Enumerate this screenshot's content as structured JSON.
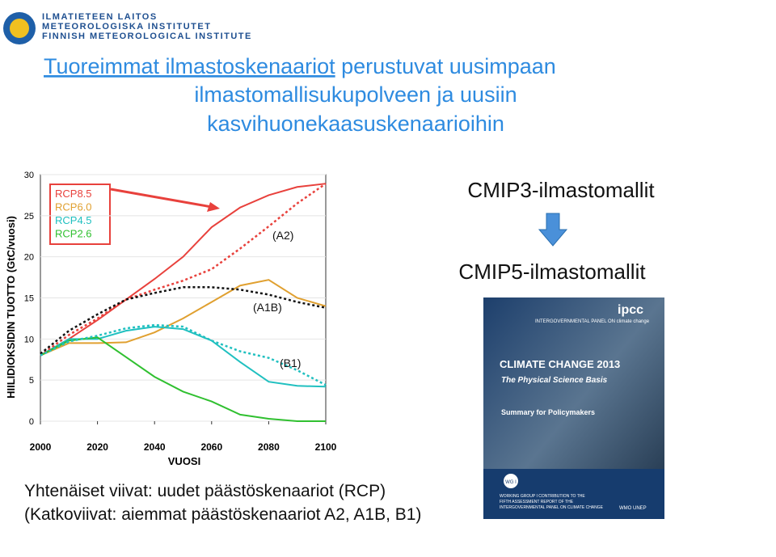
{
  "logo": {
    "lines": [
      "ILMATIETEEN LAITOS",
      "METEOROLOGISKA INSTITUTET",
      "FINNISH METEOROLOGICAL INSTITUTE"
    ]
  },
  "title": {
    "link": "Tuoreimmat ilmastoskenaariot",
    "lines": [
      " perustuvat uusimpaan",
      "ilmastomallisukupolveen ja uusiin",
      "kasvihuonekaasuskenaarioihin"
    ]
  },
  "cmip3": "CMIP3-ilmastomallit",
  "cmip5": "CMIP5-ilmastomallit",
  "cover": {
    "org": "ipcc",
    "panel": "INTERGOVERNMENTAL PANEL ON climate change",
    "title": "CLIMATE CHANGE 2013",
    "subtitle": "The Physical Science Basis",
    "summary": "Summary for Policymakers",
    "wg": "WG I",
    "contribution": [
      "WORKING GROUP I CONTRIBUTION TO THE",
      "FIFTH ASSESSMENT REPORT OF THE",
      "INTERGOVERNMENTAL PANEL ON CLIMATE CHANGE"
    ],
    "logos": "WMO  UNEP"
  },
  "footer": [
    "Yhtenäiset viivat: uudet päästöskenaariot (RCP)",
    "(Katkoviivat: aiemmat päästöskenaariot  A2, A1B, B1)"
  ],
  "chart_data": {
    "type": "line",
    "xlabel": "VUOSI",
    "ylabel": "HIILIDIOKSIDIN TUOTTO (GtC/vuosi)",
    "x": [
      2000,
      2010,
      2020,
      2030,
      2040,
      2050,
      2060,
      2070,
      2080,
      2090,
      2100
    ],
    "xlim": [
      2000,
      2100
    ],
    "xticks": [
      2000,
      2020,
      2040,
      2060,
      2080,
      2100
    ],
    "ylim": [
      0,
      30
    ],
    "yticks": [
      0,
      5,
      10,
      15,
      20,
      25,
      30
    ],
    "grid": true,
    "series": [
      {
        "name": "RCP8.5",
        "color": "#e8413c",
        "dashed": false,
        "values": [
          8,
          10,
          12.3,
          14.8,
          17.3,
          20,
          23.6,
          26,
          27.5,
          28.5,
          28.9
        ]
      },
      {
        "name": "RCP6.0",
        "color": "#e0a030",
        "dashed": false,
        "values": [
          8,
          9.5,
          9.5,
          9.6,
          10.8,
          12.5,
          14.5,
          16.5,
          17.2,
          15,
          14
        ]
      },
      {
        "name": "RCP4.5",
        "color": "#20c0c0",
        "dashed": false,
        "values": [
          8,
          10,
          10,
          11,
          11.5,
          11.2,
          9.8,
          7.2,
          4.8,
          4.3,
          4.2
        ]
      },
      {
        "name": "RCP2.6",
        "color": "#30c030",
        "dashed": false,
        "values": [
          8,
          9.8,
          10.2,
          7.8,
          5.4,
          3.6,
          2.4,
          0.8,
          0.3,
          0,
          0
        ]
      },
      {
        "name": "(A2)",
        "color": "#e8413c",
        "dashed": true,
        "values": [
          8,
          10.5,
          12.5,
          14.8,
          16,
          17.1,
          18.5,
          21,
          23.7,
          26.5,
          28.9
        ]
      },
      {
        "name": "(A1B)",
        "color": "#111111",
        "dashed": true,
        "values": [
          8.2,
          11,
          13,
          14.8,
          15.6,
          16.3,
          16.3,
          16,
          15.4,
          14.5,
          13.8
        ]
      },
      {
        "name": "(B1)",
        "color": "#20c0c0",
        "dashed": true,
        "values": [
          8,
          9.7,
          10.4,
          11.3,
          11.7,
          11.5,
          9.8,
          8.5,
          7.7,
          6.2,
          4.4
        ]
      }
    ]
  }
}
